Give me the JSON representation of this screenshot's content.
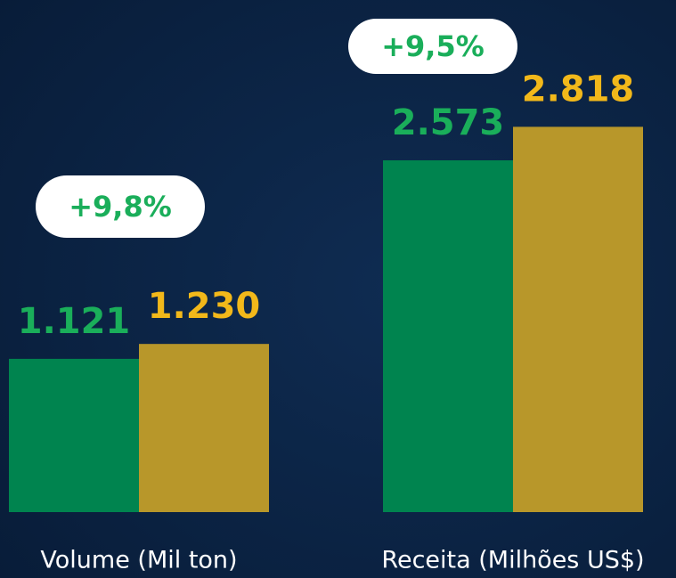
{
  "chart_data": {
    "type": "bar",
    "categories": [
      "Volume (Mil ton)",
      "Receita (Milhões US$)"
    ],
    "series": [
      {
        "color": "#00844f",
        "label_color": "#1aae5a",
        "values": [
          1121,
          2573
        ],
        "value_labels": [
          "1.121",
          "2.573"
        ]
      },
      {
        "color": "#b8972a",
        "label_color": "#f2b81a",
        "values": [
          1230,
          2818
        ],
        "value_labels": [
          "1.230",
          "2.818"
        ]
      }
    ],
    "annotations": [
      "+9,8%",
      "+9,5%"
    ],
    "ylim": [
      0,
      3700
    ]
  }
}
